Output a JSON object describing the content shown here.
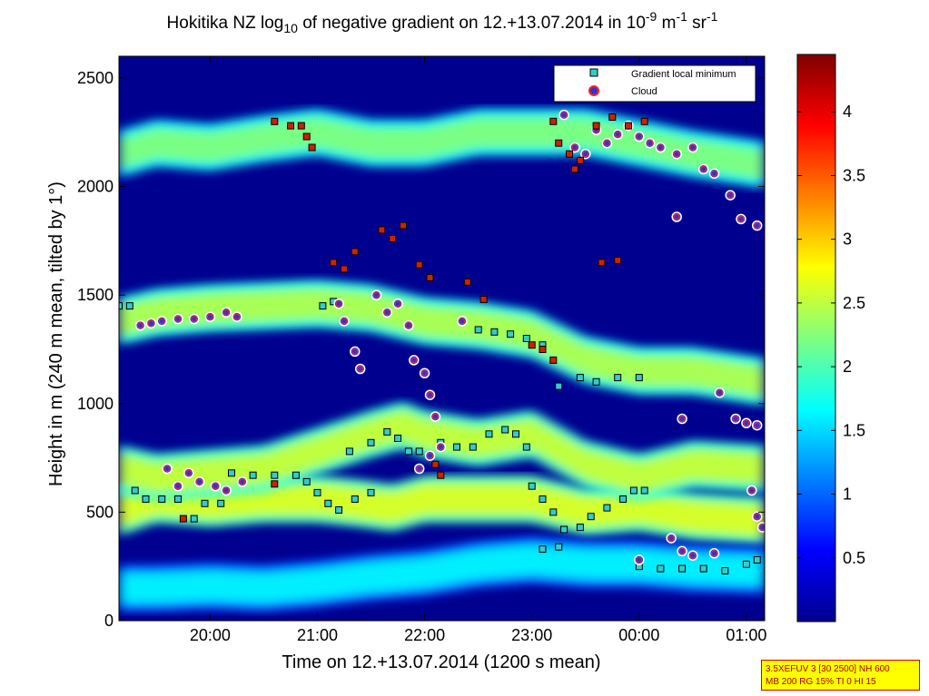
{
  "chart_data": {
    "type": "heatmap",
    "title": {
      "prefix": "Hokitika NZ log",
      "sub": "10",
      "middle": " of negative gradient on 12.+13.07.2014 in 10",
      "exp1": "-9",
      "unit1": " m",
      "exp2": "-1",
      "unit2": " sr",
      "exp3": "-1"
    },
    "xlabel": "Time on 12.+13.07.2014 (1200 s mean)",
    "ylabel": "Height in m (240 m mean, tilted by 1°)",
    "x_ticks": [
      "20:00",
      "21:00",
      "22:00",
      "23:00",
      "00:00",
      "01:00"
    ],
    "x_tick_hours": [
      20,
      21,
      22,
      23,
      24,
      25
    ],
    "xlim_hours": [
      19.15,
      25.17
    ],
    "ylim": [
      0,
      2600
    ],
    "y_ticks": [
      0,
      500,
      1000,
      1500,
      2000,
      2500
    ],
    "colorbar": {
      "range": [
        0,
        4.45
      ],
      "ticks": [
        "0.5",
        "1",
        "1.5",
        "2",
        "2.5",
        "3",
        "3.5",
        "4"
      ],
      "tick_values": [
        0.5,
        1,
        1.5,
        2,
        2.5,
        3,
        3.5,
        4
      ],
      "colormap": "jet"
    },
    "legend": {
      "placement": "top-right",
      "entries": [
        {
          "label": "Gradient local minimum",
          "marker": "square",
          "color": "#33cccc"
        },
        {
          "label": "Cloud",
          "marker": "circle",
          "color": "#3333cc",
          "edge": "#ff2222"
        }
      ]
    },
    "layers": [
      {
        "name": "low layer",
        "points": [
          [
            19.15,
            500
          ],
          [
            19.5,
            560
          ],
          [
            20.0,
            540
          ],
          [
            20.5,
            560
          ],
          [
            21.0,
            560
          ],
          [
            21.4,
            540
          ],
          [
            21.7,
            520
          ],
          [
            22.0,
            560
          ],
          [
            22.5,
            560
          ],
          [
            23.0,
            560
          ],
          [
            23.5,
            500
          ],
          [
            24.0,
            520
          ],
          [
            24.5,
            480
          ],
          [
            25.17,
            460
          ]
        ],
        "value": 2.6
      },
      {
        "name": "mid layer",
        "points": [
          [
            19.15,
            700
          ],
          [
            19.5,
            660
          ],
          [
            20.0,
            680
          ],
          [
            20.5,
            700
          ],
          [
            21.0,
            780
          ],
          [
            21.5,
            860
          ],
          [
            21.8,
            900
          ],
          [
            22.0,
            860
          ],
          [
            22.5,
            820
          ],
          [
            23.0,
            860
          ],
          [
            23.5,
            720
          ],
          [
            24.0,
            660
          ],
          [
            24.5,
            720
          ],
          [
            25.17,
            700
          ]
        ],
        "value": 2.5
      },
      {
        "name": "upper layer",
        "points": [
          [
            19.15,
            1380
          ],
          [
            19.5,
            1420
          ],
          [
            20.0,
            1440
          ],
          [
            20.5,
            1450
          ],
          [
            21.0,
            1460
          ],
          [
            21.5,
            1440
          ],
          [
            22.0,
            1380
          ],
          [
            22.5,
            1360
          ],
          [
            23.0,
            1320
          ],
          [
            23.5,
            1200
          ],
          [
            24.0,
            1150
          ],
          [
            24.5,
            1150
          ],
          [
            25.17,
            1100
          ]
        ],
        "value": 2.4
      },
      {
        "name": "top layer",
        "points": [
          [
            19.15,
            2150
          ],
          [
            19.5,
            2200
          ],
          [
            20.0,
            2180
          ],
          [
            20.5,
            2220
          ],
          [
            21.0,
            2250
          ],
          [
            21.5,
            2200
          ],
          [
            22.0,
            2200
          ],
          [
            22.5,
            2250
          ],
          [
            23.0,
            2250
          ],
          [
            23.5,
            2250
          ],
          [
            24.0,
            2200
          ],
          [
            24.5,
            2150
          ],
          [
            25.17,
            2100
          ]
        ],
        "value": 2.2
      },
      {
        "name": "near-ground layer",
        "points": [
          [
            19.15,
            150
          ],
          [
            19.5,
            150
          ],
          [
            20.0,
            160
          ],
          [
            20.5,
            150
          ],
          [
            21.0,
            170
          ],
          [
            21.5,
            200
          ],
          [
            22.0,
            220
          ],
          [
            22.5,
            260
          ],
          [
            23.0,
            280
          ],
          [
            23.5,
            260
          ],
          [
            24.0,
            260
          ],
          [
            24.5,
            240
          ],
          [
            25.17,
            230
          ]
        ],
        "value": 1.6
      }
    ],
    "series": [
      {
        "name": "Gradient local minimum",
        "marker": "square",
        "points": [
          [
            19.15,
            1450
          ],
          [
            19.25,
            1450
          ],
          [
            19.3,
            600
          ],
          [
            19.4,
            560
          ],
          [
            19.55,
            560
          ],
          [
            19.7,
            560
          ],
          [
            19.85,
            470
          ],
          [
            19.95,
            540
          ],
          [
            20.1,
            540
          ],
          [
            20.2,
            680
          ],
          [
            20.4,
            670
          ],
          [
            20.6,
            670
          ],
          [
            20.8,
            670
          ],
          [
            20.9,
            640
          ],
          [
            21.0,
            590
          ],
          [
            21.1,
            540
          ],
          [
            21.2,
            510
          ],
          [
            21.35,
            560
          ],
          [
            21.5,
            590
          ],
          [
            21.15,
            1470
          ],
          [
            21.05,
            1450
          ],
          [
            21.3,
            780
          ],
          [
            21.5,
            820
          ],
          [
            21.65,
            870
          ],
          [
            21.75,
            840
          ],
          [
            21.85,
            780
          ],
          [
            21.95,
            780
          ],
          [
            22.05,
            760
          ],
          [
            22.15,
            820
          ],
          [
            22.3,
            800
          ],
          [
            22.45,
            800
          ],
          [
            22.6,
            860
          ],
          [
            22.75,
            880
          ],
          [
            22.85,
            860
          ],
          [
            22.95,
            800
          ],
          [
            23.0,
            620
          ],
          [
            23.1,
            560
          ],
          [
            23.2,
            500
          ],
          [
            23.3,
            420
          ],
          [
            23.45,
            430
          ],
          [
            23.55,
            480
          ],
          [
            23.7,
            520
          ],
          [
            23.85,
            560
          ],
          [
            23.95,
            600
          ],
          [
            24.05,
            600
          ],
          [
            23.1,
            330
          ],
          [
            23.25,
            340
          ],
          [
            23.25,
            1080
          ],
          [
            23.45,
            1120
          ],
          [
            23.6,
            1100
          ],
          [
            23.8,
            1120
          ],
          [
            24.0,
            1120
          ],
          [
            22.5,
            1340
          ],
          [
            22.65,
            1330
          ],
          [
            22.8,
            1320
          ],
          [
            22.95,
            1300
          ],
          [
            23.1,
            1270
          ],
          [
            24.0,
            250
          ],
          [
            24.2,
            240
          ],
          [
            24.4,
            240
          ],
          [
            24.6,
            240
          ],
          [
            24.8,
            230
          ],
          [
            25.0,
            260
          ],
          [
            25.1,
            280
          ]
        ]
      },
      {
        "name": "Cloud",
        "marker": "circle",
        "points": [
          [
            19.35,
            1360
          ],
          [
            19.45,
            1370
          ],
          [
            19.55,
            1380
          ],
          [
            19.7,
            1390
          ],
          [
            19.85,
            1390
          ],
          [
            20.0,
            1400
          ],
          [
            20.15,
            1420
          ],
          [
            20.25,
            1400
          ],
          [
            19.6,
            700
          ],
          [
            19.7,
            620
          ],
          [
            19.8,
            680
          ],
          [
            19.9,
            640
          ],
          [
            20.05,
            620
          ],
          [
            20.15,
            600
          ],
          [
            20.3,
            640
          ],
          [
            21.2,
            1460
          ],
          [
            21.25,
            1380
          ],
          [
            21.35,
            1240
          ],
          [
            21.4,
            1160
          ],
          [
            21.55,
            1500
          ],
          [
            21.65,
            1420
          ],
          [
            21.75,
            1460
          ],
          [
            21.85,
            1360
          ],
          [
            21.9,
            1200
          ],
          [
            22.0,
            1140
          ],
          [
            22.05,
            1040
          ],
          [
            22.1,
            940
          ],
          [
            21.95,
            700
          ],
          [
            22.05,
            760
          ],
          [
            22.15,
            800
          ],
          [
            22.35,
            1380
          ],
          [
            23.3,
            2330
          ],
          [
            23.4,
            2180
          ],
          [
            23.5,
            2150
          ],
          [
            23.6,
            2260
          ],
          [
            23.7,
            2200
          ],
          [
            23.8,
            2240
          ],
          [
            23.9,
            2280
          ],
          [
            24.0,
            2230
          ],
          [
            24.1,
            2200
          ],
          [
            24.2,
            2180
          ],
          [
            24.35,
            2150
          ],
          [
            24.5,
            2180
          ],
          [
            24.6,
            2080
          ],
          [
            24.7,
            2060
          ],
          [
            24.85,
            1960
          ],
          [
            24.95,
            1850
          ],
          [
            25.1,
            1820
          ],
          [
            24.35,
            1860
          ],
          [
            24.9,
            930
          ],
          [
            25.0,
            910
          ],
          [
            25.1,
            900
          ],
          [
            24.4,
            930
          ],
          [
            24.75,
            1050
          ],
          [
            25.05,
            600
          ],
          [
            25.1,
            480
          ],
          [
            25.15,
            430
          ],
          [
            24.3,
            380
          ],
          [
            24.4,
            320
          ],
          [
            24.5,
            300
          ],
          [
            24.7,
            310
          ],
          [
            24.0,
            280
          ]
        ]
      },
      {
        "name": "unlabeled red squares",
        "marker": "square",
        "points": [
          [
            21.15,
            1650
          ],
          [
            21.25,
            1620
          ],
          [
            21.35,
            1700
          ],
          [
            21.6,
            1800
          ],
          [
            21.7,
            1760
          ],
          [
            21.8,
            1820
          ],
          [
            21.95,
            1640
          ],
          [
            22.05,
            1580
          ],
          [
            22.4,
            1560
          ],
          [
            22.55,
            1480
          ],
          [
            23.0,
            1270
          ],
          [
            23.1,
            1250
          ],
          [
            23.2,
            1200
          ],
          [
            22.1,
            720
          ],
          [
            22.15,
            670
          ],
          [
            20.6,
            2300
          ],
          [
            20.75,
            2280
          ],
          [
            20.85,
            2280
          ],
          [
            20.9,
            2230
          ],
          [
            20.95,
            2180
          ],
          [
            23.25,
            2200
          ],
          [
            23.35,
            2150
          ],
          [
            23.45,
            2120
          ],
          [
            23.6,
            2280
          ],
          [
            23.75,
            2320
          ],
          [
            23.9,
            2280
          ],
          [
            24.05,
            2300
          ],
          [
            23.65,
            1650
          ],
          [
            23.8,
            1660
          ],
          [
            23.2,
            2300
          ],
          [
            23.4,
            2080
          ],
          [
            19.75,
            470
          ],
          [
            20.6,
            630
          ]
        ]
      }
    ]
  },
  "info_box": {
    "line1": "3.5XEFUV 3 [30 2500] NH 600",
    "line2": "MB 200 RG 15% TI 0 HI 15"
  }
}
